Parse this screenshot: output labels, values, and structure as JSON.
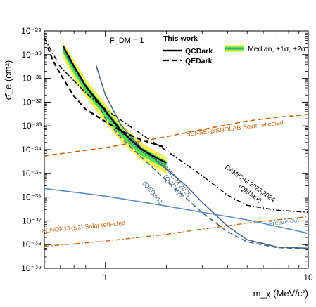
{
  "chart_data": {
    "type": "line",
    "xlabel": "m_χ (MeV/c²)",
    "ylabel": "σ̄_e (cm²)",
    "x_scale": "log",
    "y_scale": "log",
    "xlim": [
      0.5,
      10
    ],
    "ylim": [
      1e-39,
      1e-29
    ],
    "x_tick_labels": [
      {
        "x": 1,
        "text": "1"
      },
      {
        "x": 10,
        "text": "10"
      }
    ],
    "y_tick_labels": [
      {
        "y": 1e-29,
        "text": "10⁻²⁹"
      },
      {
        "y": 1e-30,
        "text": "10⁻³⁰"
      },
      {
        "y": 1e-31,
        "text": "10⁻³¹"
      },
      {
        "y": 1e-32,
        "text": "10⁻³²"
      },
      {
        "y": 1e-33,
        "text": "10⁻³³"
      },
      {
        "y": 1e-34,
        "text": "10⁻³⁴"
      },
      {
        "y": 1e-35,
        "text": "10⁻³⁵"
      },
      {
        "y": 1e-36,
        "text": "10⁻³⁶"
      },
      {
        "y": 1e-37,
        "text": "10⁻³⁷"
      },
      {
        "y": 1e-38,
        "text": "10⁻³⁸"
      },
      {
        "y": 1e-39,
        "text": "10⁻³⁹"
      }
    ],
    "annotation_fdm": "F_DM = 1",
    "legend": {
      "title": "This work",
      "entries": [
        {
          "label": "QCDark",
          "style": "solid",
          "color": "#000000"
        },
        {
          "label": "QEDark",
          "style": "dashed",
          "color": "#000000"
        },
        {
          "label": "Median, ±1σ, ±2σ",
          "style": "band",
          "color": "#000000"
        }
      ]
    },
    "band": {
      "x": [
        0.62,
        0.7,
        0.8,
        0.9,
        1.0,
        1.2,
        1.5,
        1.8,
        2.0
      ],
      "median": [
        1.6e-30,
        2.5e-31,
        4e-32,
        1.1e-32,
        3.5e-33,
        5e-34,
        8.5e-35,
        3.5e-35,
        2.2e-35
      ],
      "sigma1_lo": [
        1.1e-30,
        1.6e-31,
        2.6e-32,
        7e-33,
        2.3e-33,
        3.4e-34,
        5.8e-35,
        2.4e-35,
        1.5e-35
      ],
      "sigma1_hi": [
        2.3e-30,
        3.8e-31,
        6e-32,
        1.7e-32,
        5.5e-33,
        7.8e-34,
        1.3e-34,
        5.3e-35,
        3.3e-35
      ],
      "sigma2_lo": [
        7e-31,
        1e-31,
        1.6e-32,
        4.4e-33,
        1.4e-33,
        2.1e-34,
        3.7e-35,
        1.5e-35,
        9.5e-36
      ],
      "sigma2_hi": [
        3.4e-30,
        5.8e-31,
        9.5e-32,
        2.7e-32,
        8.5e-33,
        1.2e-33,
        2e-34,
        8e-35,
        5e-35
      ],
      "color_1sigma": "#52e052",
      "color_2sigma": "#f2f25a",
      "median_color": "#1d6fb8"
    },
    "series": [
      {
        "name": "QCDark",
        "style": "solid",
        "color": "#000000",
        "width": 2.4,
        "x": [
          0.62,
          0.7,
          0.8,
          0.9,
          1.0,
          1.2,
          1.5,
          1.8,
          2.0
        ],
        "y": [
          2.2e-30,
          3.2e-31,
          4.8e-32,
          1.3e-32,
          4.2e-33,
          6e-34,
          1.05e-34,
          4.3e-35,
          2.8e-35
        ]
      },
      {
        "name": "QEDark",
        "style": "dashed",
        "color": "#000000",
        "width": 2.2,
        "x": [
          0.52,
          0.55,
          0.6,
          0.7,
          0.8,
          1.0,
          1.2,
          1.5,
          2.0
        ],
        "y": [
          2e-30,
          6e-31,
          1.5e-31,
          1.8e-32,
          5e-33,
          1.5e-33,
          6e-34,
          2.6e-34,
          1.2e-34
        ]
      },
      {
        "label": "DAMIC-M 2023,2024",
        "style": "dashdot",
        "color": "#000000",
        "width": 1.5,
        "x": [
          0.5,
          0.6,
          0.8,
          1.0,
          1.5,
          2.0,
          3.0,
          4.0,
          5.0,
          7.0,
          10.0
        ],
        "y": [
          5e-30,
          3e-31,
          2.5e-32,
          5e-33,
          4.5e-34,
          9e-35,
          8e-36,
          1.2e-36,
          4.5e-37,
          2.8e-37,
          2.3e-37
        ]
      },
      {
        "label": "DAMIC-M 2025 (QCDark)",
        "style": "solid",
        "color": "#4a6785",
        "width": 1.6,
        "x": [
          0.9,
          1.0,
          1.2,
          1.5,
          2.0,
          2.5,
          3.0,
          4.0,
          5.0,
          7.0,
          10.0
        ],
        "y": [
          3.5e-31,
          2e-32,
          1e-33,
          1.2e-34,
          1.5e-35,
          3e-36,
          6e-37,
          6e-38,
          1.6e-38,
          8e-39,
          7e-39
        ]
      },
      {
        "label": "DAMIC-M 2025 (QEDark)",
        "style": "dashed",
        "color": "#4a6785",
        "width": 1.6,
        "x": [
          0.95,
          1.0,
          1.2,
          1.5,
          2.0,
          2.5,
          3.0,
          4.0,
          5.0,
          7.0,
          10.0
        ],
        "y": [
          5e-33,
          2e-33,
          3e-34,
          5e-35,
          5e-36,
          9e-37,
          2.2e-37,
          3.5e-38,
          1.3e-38,
          7.5e-39,
          6.5e-39
        ]
      },
      {
        "label": "SENSEI@SNOLAB Solar reflected",
        "style": "dashed",
        "color": "#c8650f",
        "width": 1.6,
        "x": [
          0.5,
          1.0,
          2.0,
          3.0,
          5.0,
          7.0,
          10.0
        ],
        "y": [
          5.5e-35,
          1.2e-34,
          3.5e-34,
          7e-34,
          1.6e-33,
          2.3e-33,
          3e-33
        ]
      },
      {
        "label": "XENON1T(S2) Solar reflected",
        "style": "dashdot",
        "color": "#c8650f",
        "width": 1.4,
        "x": [
          0.5,
          1.0,
          2.0,
          3.0,
          5.0,
          7.0,
          10.0
        ],
        "y": [
          8.5e-39,
          1.4e-38,
          2.7e-38,
          4.5e-38,
          8e-38,
          1.1e-37,
          1.5e-37
        ]
      },
      {
        "label": "Freeze out",
        "style": "solid",
        "color": "#5b8ec3",
        "width": 1.6,
        "x": [
          0.5,
          1.0,
          2.0,
          3.0,
          5.0,
          10.0
        ],
        "y": [
          2.3e-36,
          1.1e-36,
          4.2e-37,
          2.3e-37,
          1.1e-37,
          3e-38
        ]
      }
    ],
    "annotations": [
      {
        "text": "SENSEI@SNOLAB Solar reflected",
        "x": 4.35,
        "y": 6.5e-34,
        "angle": -7,
        "color": "#c8650f"
      },
      {
        "text": "XENON1T(S2) Solar reflected",
        "x": 0.78,
        "y": 4.6e-38,
        "angle": -5.5,
        "color": "#c8650f"
      },
      {
        "text": "Freeze out",
        "x": 7.6,
        "y": 7.5e-38,
        "angle": -8,
        "color": "#5b8ec3"
      },
      {
        "text": "DAMIC-M 2025",
        "x": 2.18,
        "y": 5e-36,
        "angle": 50,
        "color": "#4a6785"
      },
      {
        "text": "(QCDark)",
        "x": 2.12,
        "y": 2.6e-36,
        "angle": 50,
        "color": "#4a6785"
      },
      {
        "text": "(QEDark)",
        "x": 1.68,
        "y": 1.4e-36,
        "angle": 50,
        "color": "#4a6785"
      },
      {
        "text": "DAMIC-M 2023,2024",
        "x": 5.1,
        "y": 3.2e-36,
        "angle": 35,
        "color": "#000000"
      },
      {
        "text": "(QEDark)",
        "x": 5.1,
        "y": 1.2e-36,
        "angle": 35,
        "color": "#000000"
      }
    ],
    "grid": false,
    "legend_position": "top-right"
  }
}
